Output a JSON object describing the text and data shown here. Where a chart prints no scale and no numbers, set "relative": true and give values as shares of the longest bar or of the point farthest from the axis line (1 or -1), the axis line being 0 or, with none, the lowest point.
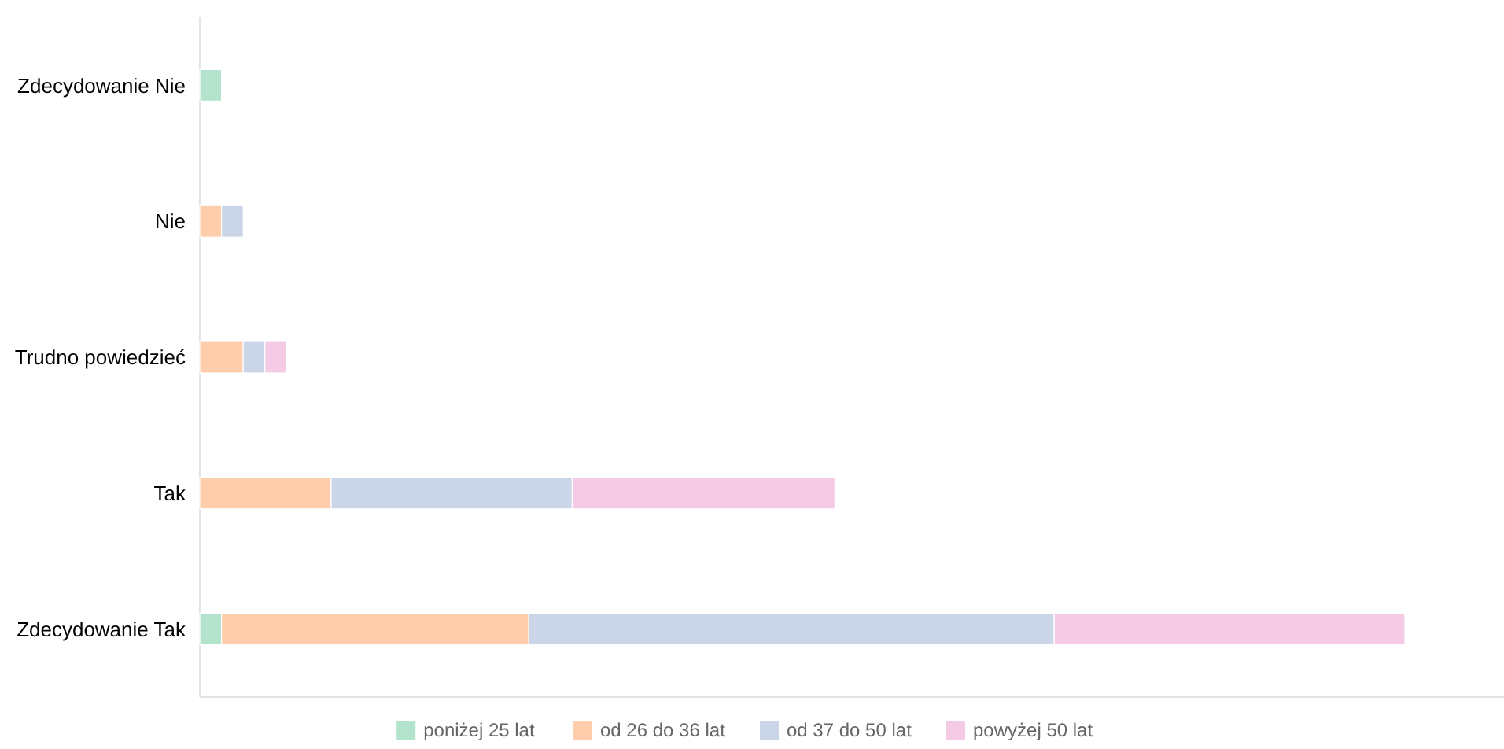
{
  "chart_data": {
    "type": "bar",
    "orientation": "horizontal",
    "stacked": true,
    "relative": true,
    "legend": "bottom",
    "categories": [
      "Zdecydowanie Nie",
      "Nie",
      "Trudno powiedzieć",
      "Tak",
      "Zdecydowanie Tak"
    ],
    "series": [
      {
        "name": "poniżej 25 lat",
        "color": "#b3e2cd",
        "values": [
          0.018,
          0,
          0,
          0,
          0.018
        ]
      },
      {
        "name": "od 26 do 36 lat",
        "color": "#fdcdac",
        "values": [
          0,
          0.018,
          0.036,
          0.109,
          0.255
        ]
      },
      {
        "name": "od 37 do 50 lat",
        "color": "#cbd5e8",
        "values": [
          0,
          0.018,
          0.018,
          0.2,
          0.436
        ]
      },
      {
        "name": "powyżej 50 lat",
        "color": "#f4cae4",
        "values": [
          0,
          0,
          0.018,
          0.218,
          0.291
        ]
      }
    ]
  }
}
